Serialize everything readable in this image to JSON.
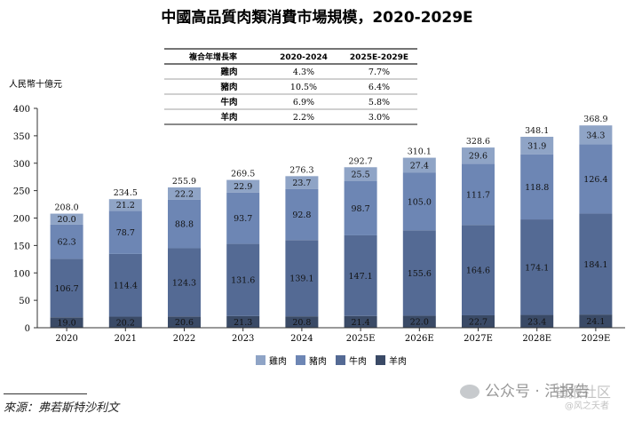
{
  "chart_data": {
    "type": "bar",
    "stacked": true,
    "title": "中國高品質肉類消費市場規模，2020-2029E",
    "ylabel": "人民幣十億元",
    "ylim": [
      0,
      400
    ],
    "yticks": [
      0,
      50,
      100,
      150,
      200,
      250,
      300,
      350,
      400
    ],
    "categories": [
      "2020",
      "2021",
      "2022",
      "2023",
      "2024",
      "2025E",
      "2026E",
      "2027E",
      "2028E",
      "2029E"
    ],
    "totals": [
      "208.0",
      "234.5",
      "255.9",
      "269.5",
      "276.3",
      "292.7",
      "310.1",
      "328.6",
      "348.1",
      "368.9"
    ],
    "series": [
      {
        "name": "羊肉",
        "color": "#3a4a66",
        "values": [
          19.0,
          20.2,
          20.6,
          21.3,
          20.8,
          21.4,
          22.0,
          22.7,
          23.4,
          24.1
        ],
        "labels": [
          "19.0",
          "20.2",
          "20.6",
          "21.3",
          "20.8",
          "21.4",
          "22.0",
          "22.7",
          "23.4",
          "24.1"
        ]
      },
      {
        "name": "牛肉",
        "color": "#546a94",
        "values": [
          106.7,
          114.4,
          124.3,
          131.6,
          139.1,
          147.1,
          155.6,
          164.6,
          174.1,
          184.1
        ],
        "labels": [
          "106.7",
          "114.4",
          "124.3",
          "131.6",
          "139.1",
          "147.1",
          "155.6",
          "164.6",
          "174.1",
          "184.1"
        ]
      },
      {
        "name": "豬肉",
        "color": "#6d86b4",
        "values": [
          62.3,
          78.7,
          88.8,
          93.7,
          92.8,
          98.7,
          105.0,
          111.7,
          118.8,
          126.4
        ],
        "labels": [
          "62.3",
          "78.7",
          "88.8",
          "93.7",
          "92.8",
          "98.7",
          "105.0",
          "111.7",
          "118.8",
          "126.4"
        ]
      },
      {
        "name": "雞肉",
        "color": "#8fa4c6",
        "values": [
          20.0,
          21.2,
          22.2,
          22.9,
          23.7,
          25.5,
          27.4,
          29.6,
          31.9,
          34.3
        ],
        "labels": [
          "20.0",
          "21.2",
          "22.2",
          "22.9",
          "23.7",
          "25.5",
          "27.4",
          "29.6",
          "31.9",
          "34.3"
        ]
      }
    ],
    "legend": [
      "雞肉",
      "豬肉",
      "牛肉",
      "羊肉"
    ],
    "cagr_table": {
      "header": [
        "複合年增長率",
        "2020-2024",
        "2025E-2029E"
      ],
      "rows": [
        [
          "雞肉",
          "4.3%",
          "7.7%"
        ],
        [
          "豬肉",
          "10.5%",
          "6.4%"
        ],
        [
          "牛肉",
          "6.9%",
          "5.8%"
        ],
        [
          "羊肉",
          "2.2%",
          "3.0%"
        ]
      ]
    },
    "source": "來源：弗若斯特沙利文"
  },
  "watermark": {
    "text": "公众号 · 活报告",
    "corner": "誉报社区",
    "sub": "@风之夭者"
  }
}
